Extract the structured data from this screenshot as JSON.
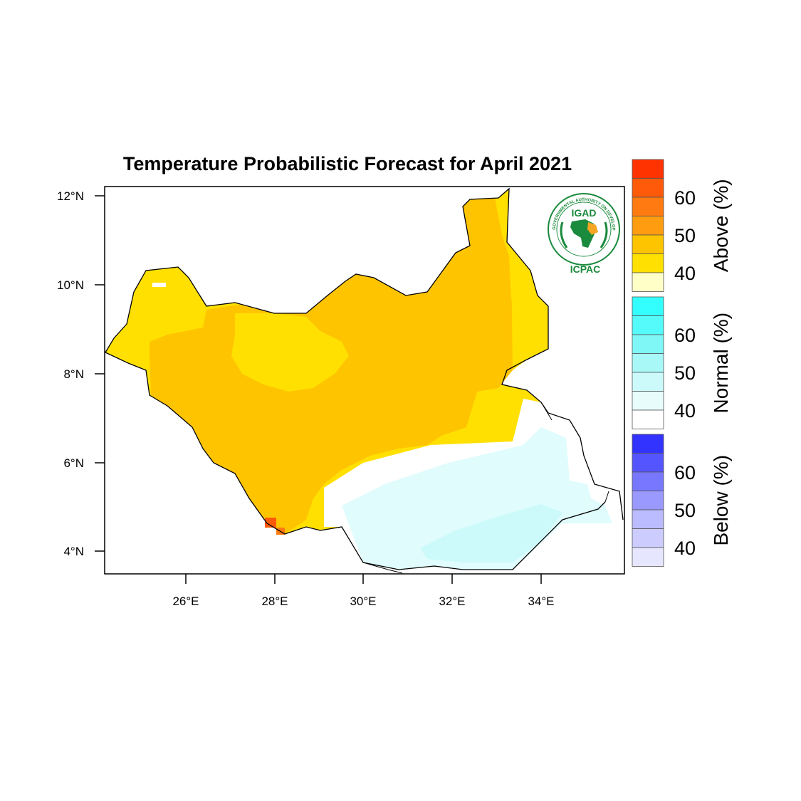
{
  "map": {
    "title": "Temperature Probabilistic Forecast for April 2021",
    "lat_ticks": [
      "12°N",
      "10°N",
      "8°N",
      "6°N",
      "4°N"
    ],
    "lon_ticks": [
      "26°E",
      "28°E",
      "30°E",
      "32°E",
      "34°E"
    ],
    "lon_range": [
      24.2,
      35.8
    ],
    "lat_range": [
      3.5,
      12.2
    ]
  },
  "logo": {
    "name": "IGAD",
    "org": "ICPAC",
    "ring_text": "INTERGOVERNMENTAL AUTHORITY ON DEVELOPMENT"
  },
  "legend": {
    "groups": [
      {
        "label": "Above (%)",
        "ticks": [
          "60",
          "50",
          "40"
        ],
        "colors": [
          "#ff3300",
          "#ff5a0a",
          "#ff7a10",
          "#ff9c10",
          "#ffc400",
          "#ffe000",
          "#ffffc8"
        ]
      },
      {
        "label": "Normal (%)",
        "ticks": [
          "60",
          "50",
          "40"
        ],
        "colors": [
          "#33ffff",
          "#55fafa",
          "#7ff7f7",
          "#a8f8f8",
          "#ccfafa",
          "#e8fcfc",
          "#ffffff"
        ]
      },
      {
        "label": "Below (%)",
        "ticks": [
          "60",
          "50",
          "40"
        ],
        "colors": [
          "#3333ff",
          "#5555ff",
          "#7777ff",
          "#9999ff",
          "#bbbbff",
          "#ccccff",
          "#e6e6ff"
        ]
      }
    ]
  },
  "colors": {
    "above_40": "#ffe000",
    "above_45": "#ffc400",
    "above_60": "#ff5a0a",
    "normal_40": "#e0fcfc",
    "normal_45": "#ccfafa",
    "no_signal": "#ffffff"
  }
}
